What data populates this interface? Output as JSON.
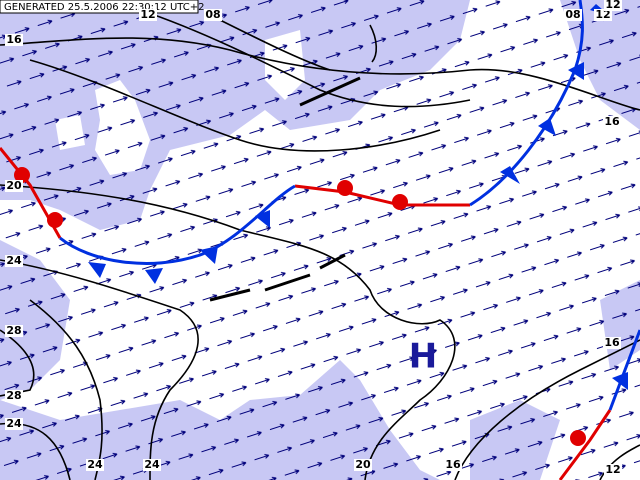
{
  "header": {
    "generated": "GENERATED 25.5.2006 22:30:12 UTC+2"
  },
  "pressure_center": "H",
  "isobar_labels": [
    "16",
    "12",
    "08",
    "08",
    "12",
    "12",
    "16",
    "20",
    "24",
    "28",
    "28",
    "24",
    "24",
    "24",
    "20",
    "16",
    "16",
    "12"
  ]
}
